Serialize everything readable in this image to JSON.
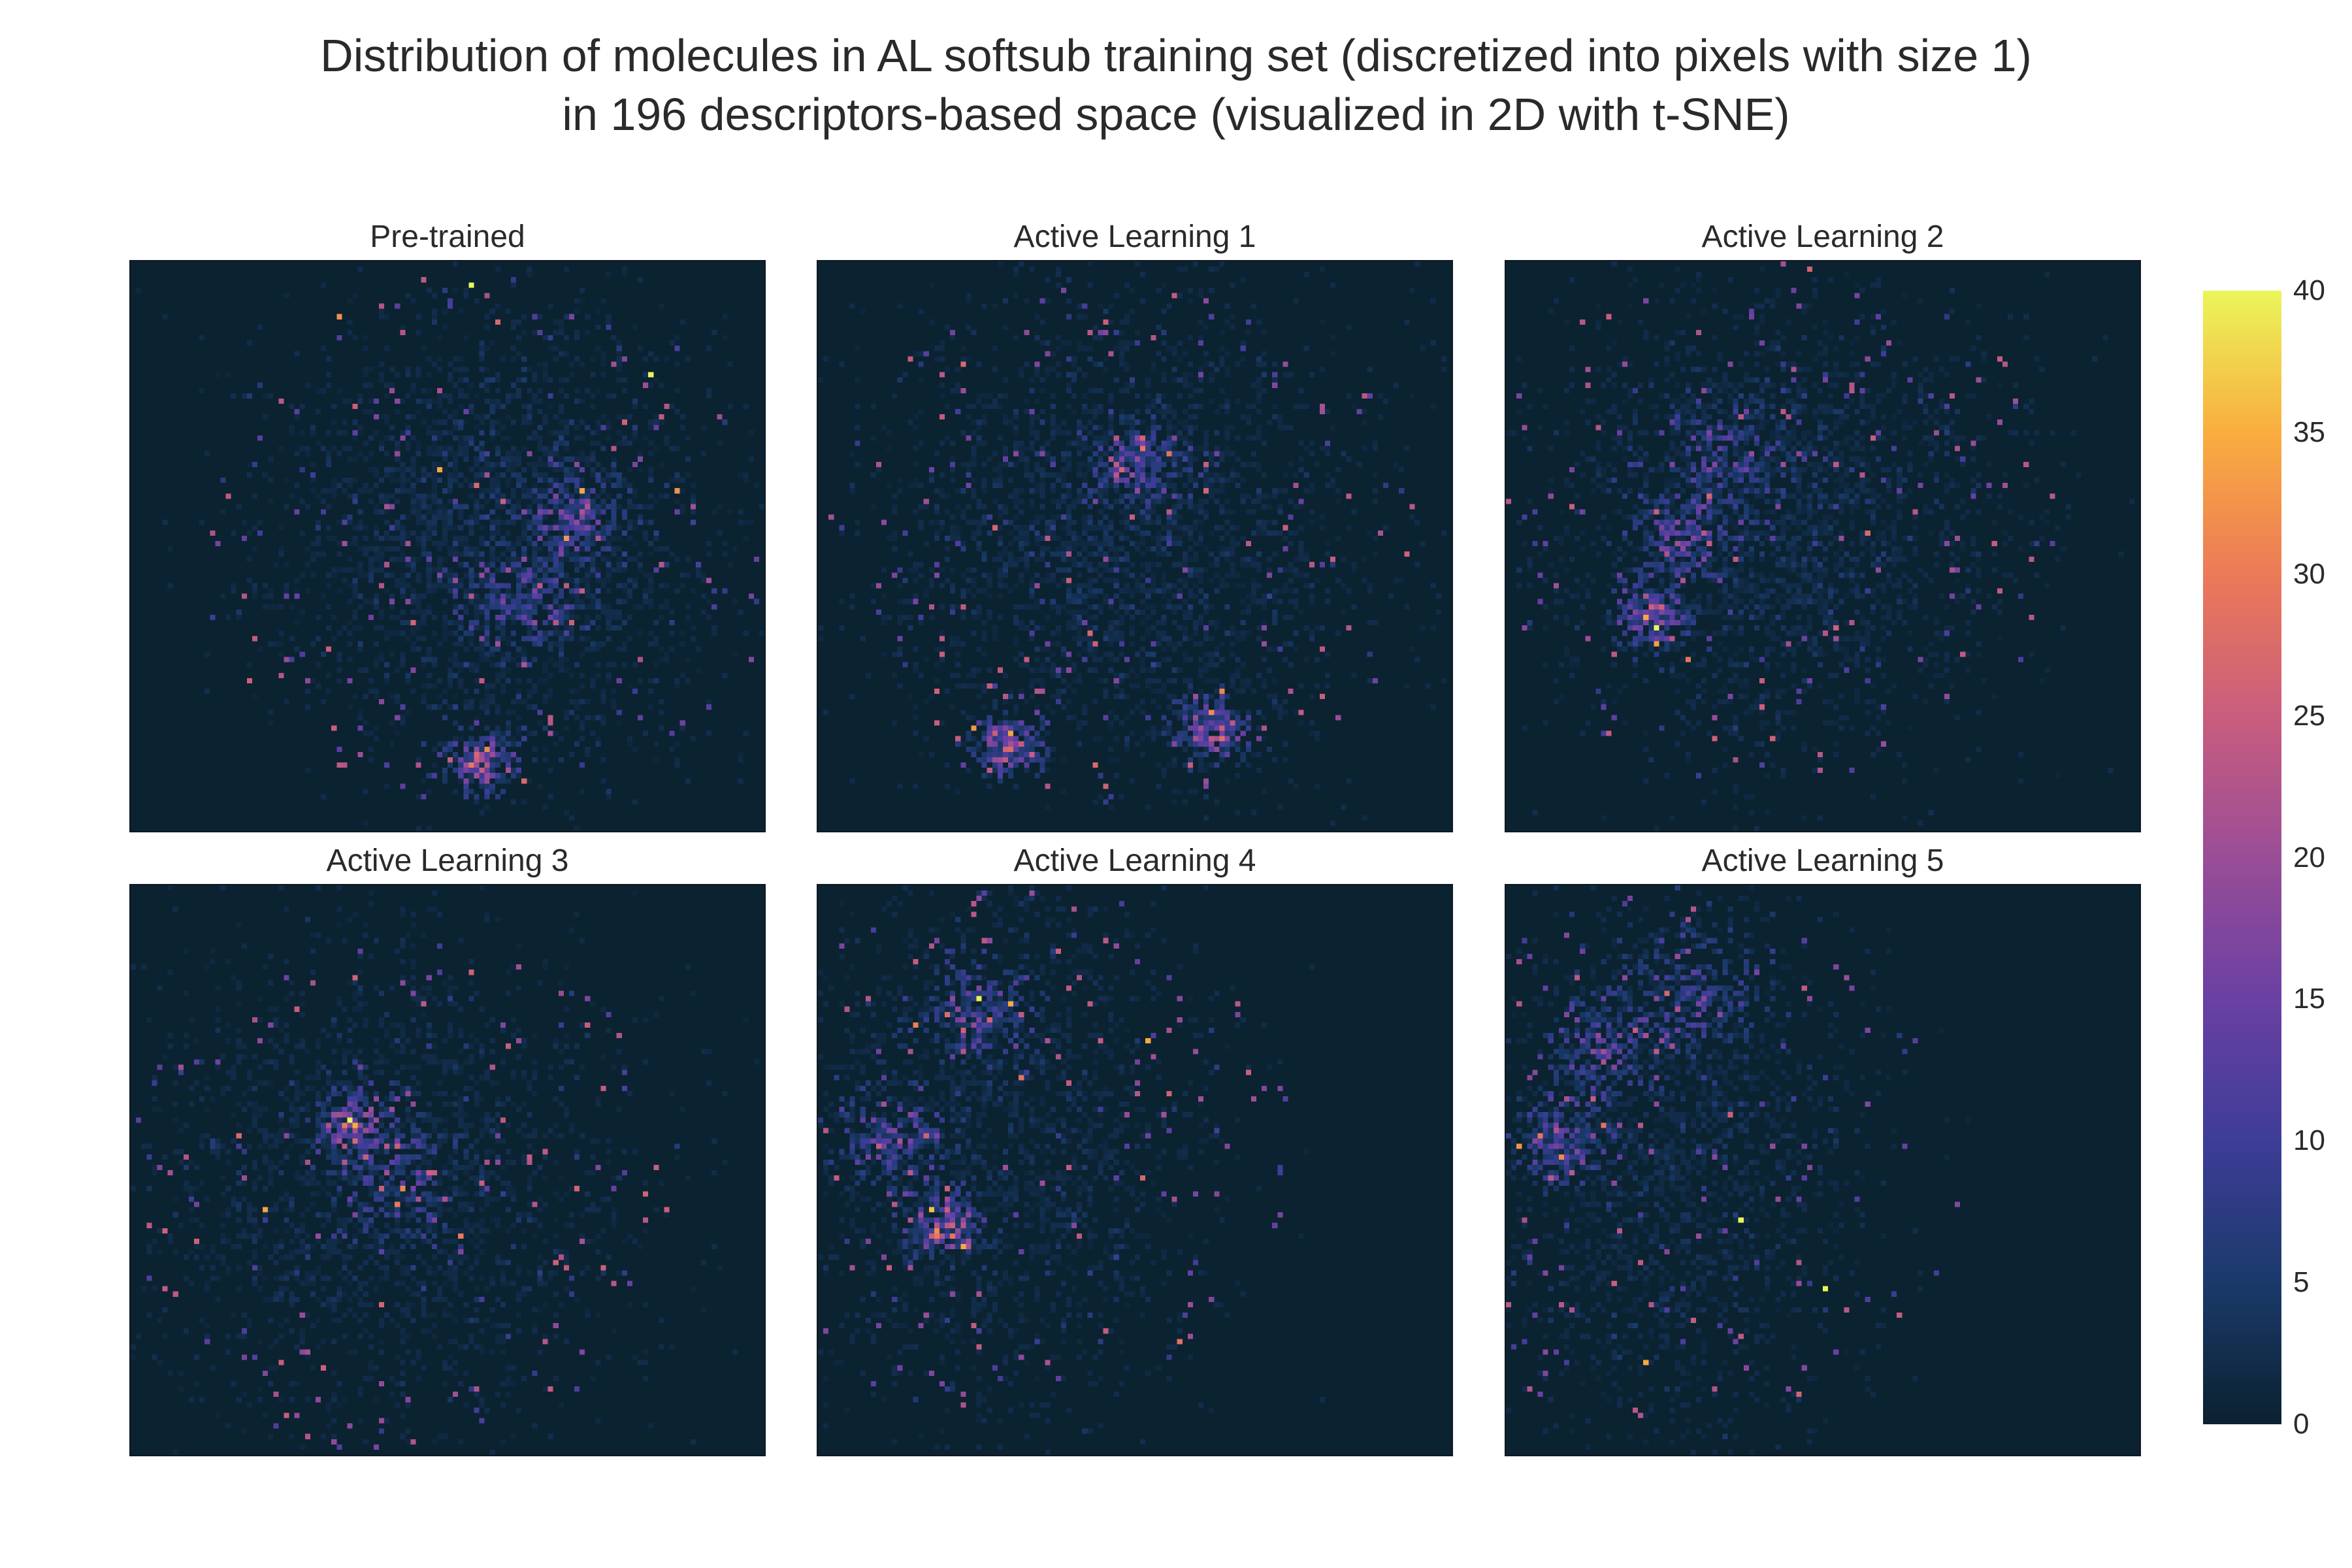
{
  "chart_data": {
    "type": "heatmap",
    "title_lines": [
      "Distribution of molecules in AL softsub training set (discretized into pixels with size 1)",
      "in 196 descriptors-based space (visualized in 2D with t-SNE)"
    ],
    "panels": [
      {
        "title": "Pre-trained"
      },
      {
        "title": "Active Learning 1"
      },
      {
        "title": "Active Learning 2"
      },
      {
        "title": "Active Learning 3"
      },
      {
        "title": "Active Learning 4"
      },
      {
        "title": "Active Learning 5"
      }
    ],
    "colorbar": {
      "min": 0,
      "max": 40,
      "ticks": [
        "0",
        "5",
        "10",
        "15",
        "20",
        "25",
        "30",
        "35",
        "40"
      ],
      "colorscale": [
        "#0b2231",
        "#1b3a6b",
        "#3e3d98",
        "#6a40a3",
        "#9a4d97",
        "#c95d7e",
        "#ec7a58",
        "#f9ad3f",
        "#ebf55a"
      ]
    },
    "grid": false
  }
}
